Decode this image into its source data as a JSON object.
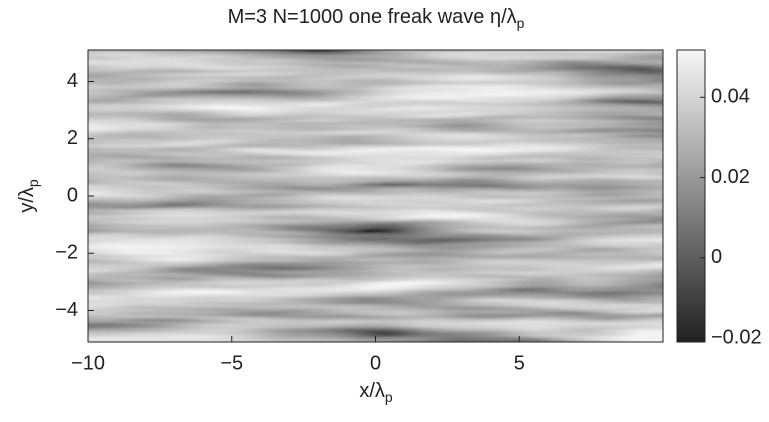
{
  "chart_data": {
    "type": "heatmap",
    "title": {
      "text": "M=3 N=1000 one freak wave η/λ",
      "subscript": "p"
    },
    "xlabel": {
      "text": "x/λ",
      "subscript": "p"
    },
    "ylabel": {
      "text": "y/λ",
      "subscript": "p"
    },
    "xlim": [
      -10,
      10
    ],
    "xticks": [
      {
        "value": -10,
        "label": "−10"
      },
      {
        "value": -5,
        "label": "−5"
      },
      0,
      5
    ],
    "ylim": [
      -5.1,
      5.1
    ],
    "yticks": [
      {
        "value": -4,
        "label": "−4"
      },
      {
        "value": -2,
        "label": "−2"
      },
      0,
      2,
      4
    ],
    "clim": [
      -0.021,
      0.0518
    ],
    "cticks": [
      {
        "value": -0.02,
        "label": "−0.02"
      },
      0,
      0.02,
      0.04
    ],
    "colormap": "gray"
  }
}
